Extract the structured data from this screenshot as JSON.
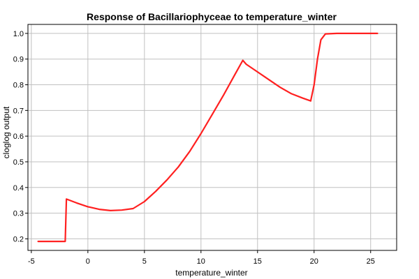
{
  "chart_data": {
    "type": "line",
    "title": "Response of Bacillariophyceae to temperature_winter",
    "xlabel": "temperature_winter",
    "ylabel": "cloglog output",
    "xlim": [
      -5.3,
      27.3
    ],
    "ylim": [
      0.155,
      1.035
    ],
    "x_ticks": [
      -5,
      0,
      5,
      10,
      15,
      20,
      25
    ],
    "y_ticks": [
      0.2,
      0.3,
      0.4,
      0.5,
      0.6,
      0.7,
      0.8,
      0.9,
      1.0
    ],
    "grid": true,
    "series": [
      {
        "color": "#ff2020",
        "x": [
          -4.4,
          -2.0,
          -1.9,
          -1.0,
          0.0,
          1.0,
          2.0,
          3.0,
          4.0,
          5.0,
          6.0,
          7.0,
          8.0,
          9.0,
          10.0,
          11.0,
          12.0,
          13.0,
          13.7,
          14.0,
          15.0,
          16.0,
          17.0,
          18.0,
          19.0,
          19.7,
          20.0,
          20.3,
          20.6,
          21.0,
          22.0,
          23.0,
          24.0,
          25.0,
          25.6
        ],
        "y": [
          0.19,
          0.19,
          0.355,
          0.34,
          0.325,
          0.315,
          0.31,
          0.312,
          0.318,
          0.345,
          0.385,
          0.43,
          0.48,
          0.54,
          0.61,
          0.685,
          0.76,
          0.84,
          0.895,
          0.88,
          0.85,
          0.82,
          0.79,
          0.765,
          0.748,
          0.737,
          0.8,
          0.9,
          0.975,
          0.998,
          1.0,
          1.0,
          1.0,
          1.0,
          1.0
        ]
      }
    ]
  }
}
